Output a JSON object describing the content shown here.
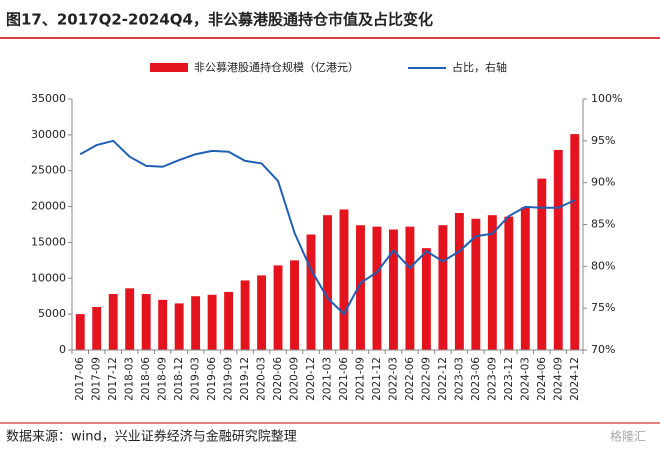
{
  "chart_data": {
    "type": "bar_line",
    "title": "图17、2017Q2-2024Q4，非公募港股通持仓市值及占比变化",
    "source": "数据来源：wind，兴业证券经济与金融研究院整理",
    "watermark": "格隆汇",
    "categories": [
      "2017-06",
      "2017-09",
      "2017-12",
      "2018-03",
      "2018-06",
      "2018-09",
      "2018-12",
      "2019-03",
      "2019-06",
      "2019-09",
      "2019-12",
      "2020-03",
      "2020-06",
      "2020-09",
      "2020-12",
      "2021-03",
      "2021-06",
      "2021-09",
      "2021-12",
      "2022-03",
      "2022-06",
      "2022-09",
      "2022-12",
      "2023-03",
      "2023-06",
      "2023-09",
      "2023-12",
      "2024-03",
      "2024-06",
      "2024-09",
      "2024-12"
    ],
    "series": [
      {
        "name": "非公募港股通持仓规模（亿港元）",
        "type": "bar",
        "color": "#e3141e",
        "values": [
          5000,
          6000,
          7800,
          8600,
          7800,
          7000,
          6500,
          7500,
          7700,
          8100,
          9700,
          10400,
          11800,
          12500,
          16100,
          18800,
          19600,
          17400,
          17200,
          16800,
          17200,
          14200,
          17400,
          19100,
          18300,
          18800,
          18600,
          19900,
          23900,
          27900,
          30100
        ]
      },
      {
        "name": "占比，右轴",
        "type": "line",
        "axis": "y2",
        "color": "#1f5fb4",
        "values": [
          93.4,
          94.5,
          95.0,
          93.1,
          92.0,
          91.9,
          92.7,
          93.4,
          93.8,
          93.7,
          92.6,
          92.3,
          90.2,
          84.0,
          79.6,
          76.2,
          74.3,
          78.0,
          79.3,
          81.9,
          79.8,
          81.8,
          80.6,
          81.8,
          83.6,
          83.9,
          86.0,
          87.1,
          87.0,
          87.0,
          87.9
        ]
      }
    ],
    "ylim": [
      0,
      35000
    ],
    "yticks": [
      0,
      5000,
      10000,
      15000,
      20000,
      25000,
      30000,
      35000
    ],
    "y2lim": [
      70,
      100
    ],
    "y2ticks": [
      {
        "value": 70,
        "label": "70%"
      },
      {
        "value": 75,
        "label": "75%"
      },
      {
        "value": 80,
        "label": "80%"
      },
      {
        "value": 85,
        "label": "85%"
      },
      {
        "value": 90,
        "label": "90%"
      },
      {
        "value": 95,
        "label": "95%"
      },
      {
        "value": 100,
        "label": "100%"
      }
    ],
    "legend": "top"
  }
}
